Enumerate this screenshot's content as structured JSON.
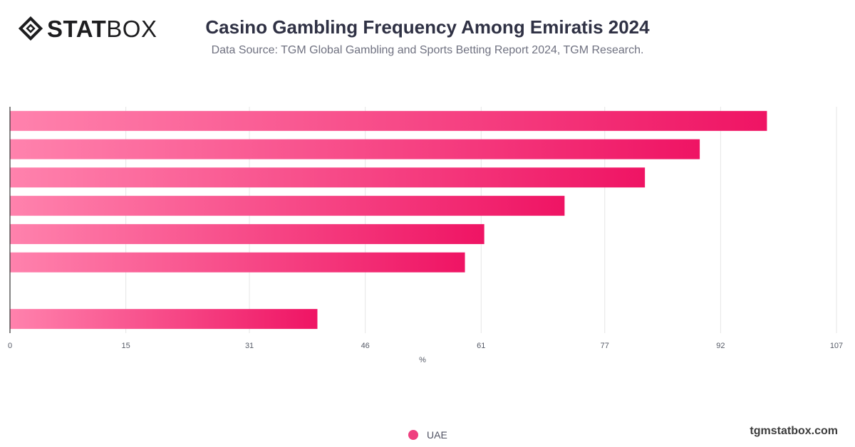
{
  "brand": {
    "logo_part1": "STAT",
    "logo_part2": "BOX",
    "logo_icon": "statbox-diamond-logo-icon",
    "website": "tgmstatbox.com"
  },
  "header": {
    "title": "Casino Gambling Frequency Among Emiratis 2024",
    "subtitle": "Data Source: TGM Global Gambling and Sports Betting Report 2024, TGM Research."
  },
  "colors": {
    "bar_start": "#ff82ad",
    "bar_end": "#ef1464",
    "grid": "#e6e6e6",
    "axis": "#333333",
    "legend_dot": "#ef3f7f"
  },
  "chart_data": {
    "type": "bar",
    "orientation": "horizontal",
    "title": "Casino Gambling Frequency Among Emiratis 2024",
    "subtitle": "Data Source: TGM Global Gambling and Sports Betting Report 2024, TGM Research.",
    "xlabel": "%",
    "ylabel": "",
    "xlim": [
      0,
      107
    ],
    "x_ticks": [
      0,
      15,
      31,
      46,
      61,
      77,
      92,
      107
    ],
    "grid": true,
    "legend_position": "bottom",
    "series": [
      {
        "name": "UAE",
        "values": [
          98,
          89.3,
          82.2,
          71.8,
          61.4,
          58.9,
          null,
          39.8
        ]
      }
    ]
  }
}
